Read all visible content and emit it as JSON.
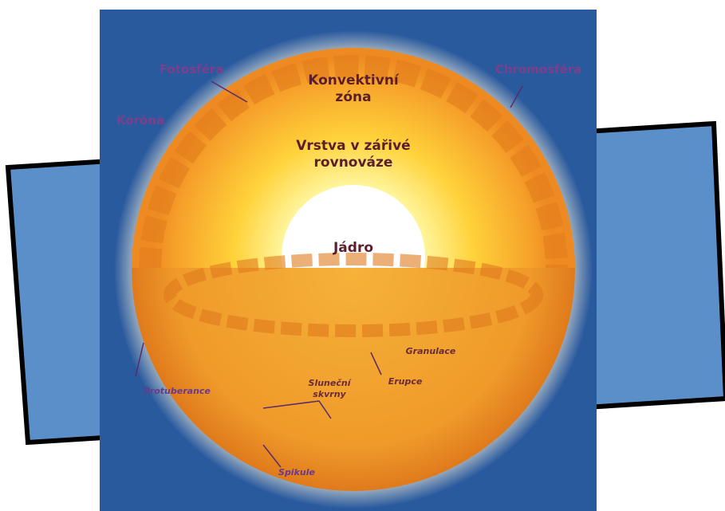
{
  "diagram": {
    "labels": [
      {
        "id": "fotosfera",
        "lines": [
          "Fotosféra"
        ]
      },
      {
        "id": "chromosfera",
        "lines": [
          "Chromosféra"
        ]
      },
      {
        "id": "korona",
        "lines": [
          "Koróna"
        ]
      },
      {
        "id": "konvektivni",
        "lines": [
          "Konvektivní",
          "zóna"
        ]
      },
      {
        "id": "vrstva",
        "lines": [
          "Vrstva v zářivé",
          "rovnováze"
        ]
      },
      {
        "id": "jadro",
        "lines": [
          "Jádro"
        ]
      },
      {
        "id": "granulace",
        "lines": [
          "Granulace"
        ]
      },
      {
        "id": "skvrny",
        "lines": [
          "Sluneční",
          "skvrny"
        ]
      },
      {
        "id": "erupce",
        "lines": [
          "Erupce"
        ]
      },
      {
        "id": "protuberance",
        "lines": [
          "Protuberance"
        ]
      },
      {
        "id": "spikule",
        "lines": [
          "Spikule"
        ]
      }
    ]
  }
}
